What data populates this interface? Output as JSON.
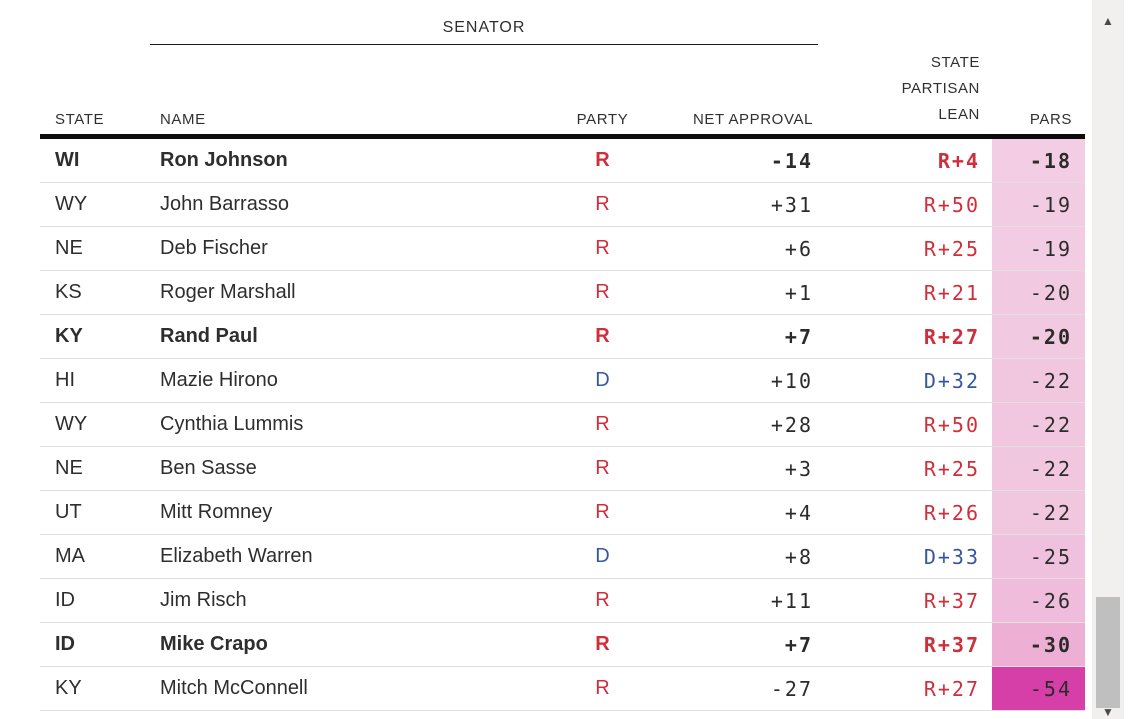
{
  "header": {
    "group_label": "SENATOR",
    "columns": {
      "state": "STATE",
      "name": "NAME",
      "party": "PARTY",
      "net_approval": "NET APPROVAL",
      "lean_line1": "STATE",
      "lean_line2": "PARTISAN",
      "lean_line3": "LEAN",
      "pars": "PARS"
    }
  },
  "colors": {
    "republican": "#cf2e3a",
    "democrat": "#35589f",
    "header_rule": "#0c0c0c",
    "row_rule": "#e0e0e0"
  },
  "rows": [
    {
      "state": "WI",
      "name": "Ron Johnson",
      "party": "R",
      "net_approval": "-14",
      "lean": "R+4",
      "pars": "-18",
      "bold": true,
      "pars_bg": "#f2cde4"
    },
    {
      "state": "WY",
      "name": "John Barrasso",
      "party": "R",
      "net_approval": "+31",
      "lean": "R+50",
      "pars": "-19",
      "bold": false,
      "pars_bg": "#f2cce3"
    },
    {
      "state": "NE",
      "name": "Deb Fischer",
      "party": "R",
      "net_approval": "+6",
      "lean": "R+25",
      "pars": "-19",
      "bold": false,
      "pars_bg": "#f2cce3"
    },
    {
      "state": "KS",
      "name": "Roger Marshall",
      "party": "R",
      "net_approval": "+1",
      "lean": "R+21",
      "pars": "-20",
      "bold": false,
      "pars_bg": "#f1cae2"
    },
    {
      "state": "KY",
      "name": "Rand Paul",
      "party": "R",
      "net_approval": "+7",
      "lean": "R+27",
      "pars": "-20",
      "bold": true,
      "pars_bg": "#f1cae2"
    },
    {
      "state": "HI",
      "name": "Mazie Hirono",
      "party": "D",
      "net_approval": "+10",
      "lean": "D+32",
      "pars": "-22",
      "bold": false,
      "pars_bg": "#f1c7e0"
    },
    {
      "state": "WY",
      "name": "Cynthia Lummis",
      "party": "R",
      "net_approval": "+28",
      "lean": "R+50",
      "pars": "-22",
      "bold": false,
      "pars_bg": "#f1c7e0"
    },
    {
      "state": "NE",
      "name": "Ben Sasse",
      "party": "R",
      "net_approval": "+3",
      "lean": "R+25",
      "pars": "-22",
      "bold": false,
      "pars_bg": "#f1c7e0"
    },
    {
      "state": "UT",
      "name": "Mitt Romney",
      "party": "R",
      "net_approval": "+4",
      "lean": "R+26",
      "pars": "-22",
      "bold": false,
      "pars_bg": "#f1c7e0"
    },
    {
      "state": "MA",
      "name": "Elizabeth Warren",
      "party": "D",
      "net_approval": "+8",
      "lean": "D+33",
      "pars": "-25",
      "bold": false,
      "pars_bg": "#f0c1de"
    },
    {
      "state": "ID",
      "name": "Jim Risch",
      "party": "R",
      "net_approval": "+11",
      "lean": "R+37",
      "pars": "-26",
      "bold": false,
      "pars_bg": "#efbcdb"
    },
    {
      "state": "ID",
      "name": "Mike Crapo",
      "party": "R",
      "net_approval": "+7",
      "lean": "R+37",
      "pars": "-30",
      "bold": true,
      "pars_bg": "#edb0d4"
    },
    {
      "state": "KY",
      "name": "Mitch McConnell",
      "party": "R",
      "net_approval": "-27",
      "lean": "R+27",
      "pars": "-54",
      "bold": false,
      "pars_bg": "#d63ea8"
    }
  ],
  "scrollbar": {
    "up_icon": "▲",
    "down_icon": "▼"
  }
}
